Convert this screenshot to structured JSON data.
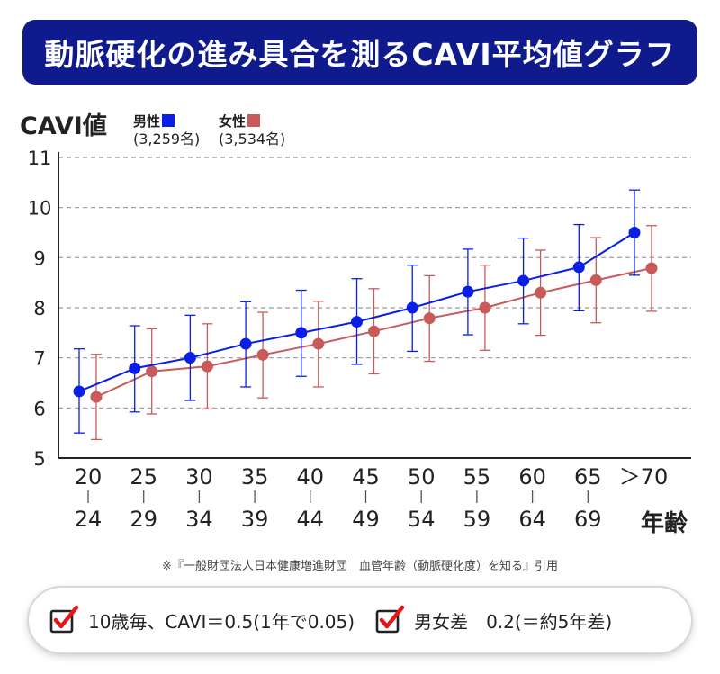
{
  "title": "動脈硬化の進み具合を測るCAVI平均値グラフ",
  "colors": {
    "male": "#0a1fe6",
    "female": "#c85a5a",
    "title_bg": "#0f1b8c"
  },
  "chart_data": {
    "type": "line",
    "ylabel": "CAVI値",
    "xlabel": "年齢",
    "ylim": [
      5,
      11
    ],
    "yticks": [
      "5",
      "6",
      "7",
      "8",
      "9",
      "10",
      "11"
    ],
    "grid": true,
    "legend_placement": "top-left",
    "categories": [
      {
        "top": "20",
        "bottom": "24"
      },
      {
        "top": "25",
        "bottom": "29"
      },
      {
        "top": "30",
        "bottom": "34"
      },
      {
        "top": "35",
        "bottom": "39"
      },
      {
        "top": "40",
        "bottom": "44"
      },
      {
        "top": "45",
        "bottom": "49"
      },
      {
        "top": "50",
        "bottom": "54"
      },
      {
        "top": "55",
        "bottom": "59"
      },
      {
        "top": "60",
        "bottom": "64"
      },
      {
        "top": "65",
        "bottom": "69"
      },
      {
        "top": "＞70",
        "bottom": ""
      }
    ],
    "series": [
      {
        "name": "男性",
        "count": "(3,259名)",
        "values": [
          6.33,
          6.79,
          7.0,
          7.28,
          7.5,
          7.72,
          8.0,
          8.32,
          8.54,
          8.81,
          9.5
        ],
        "err_low": [
          5.5,
          5.92,
          6.15,
          6.42,
          6.63,
          6.87,
          7.13,
          7.46,
          7.68,
          7.94,
          8.65
        ],
        "err_high": [
          7.18,
          7.64,
          7.85,
          8.12,
          8.35,
          8.58,
          8.85,
          9.17,
          9.39,
          9.66,
          10.35
        ]
      },
      {
        "name": "女性",
        "count": "(3,534名)",
        "values": [
          6.22,
          6.73,
          6.83,
          7.06,
          7.28,
          7.53,
          7.79,
          8.0,
          8.3,
          8.55,
          8.79
        ],
        "err_low": [
          5.37,
          5.88,
          5.98,
          6.2,
          6.42,
          6.68,
          6.93,
          7.15,
          7.45,
          7.7,
          7.93
        ],
        "err_high": [
          7.07,
          7.58,
          7.68,
          7.91,
          8.13,
          8.38,
          8.64,
          8.85,
          9.15,
          9.4,
          9.64
        ]
      }
    ]
  },
  "source": "※『一般財団法人日本健康増進財団　血管年齢（動脈硬化度）を知る』引用",
  "notes": [
    {
      "icon": "checkbox-checked-icon",
      "text": "10歳毎、CAVI＝0.5(1年で0.05)"
    },
    {
      "icon": "checkbox-checked-icon",
      "text": "男女差　0.2(＝約5年差)"
    }
  ]
}
